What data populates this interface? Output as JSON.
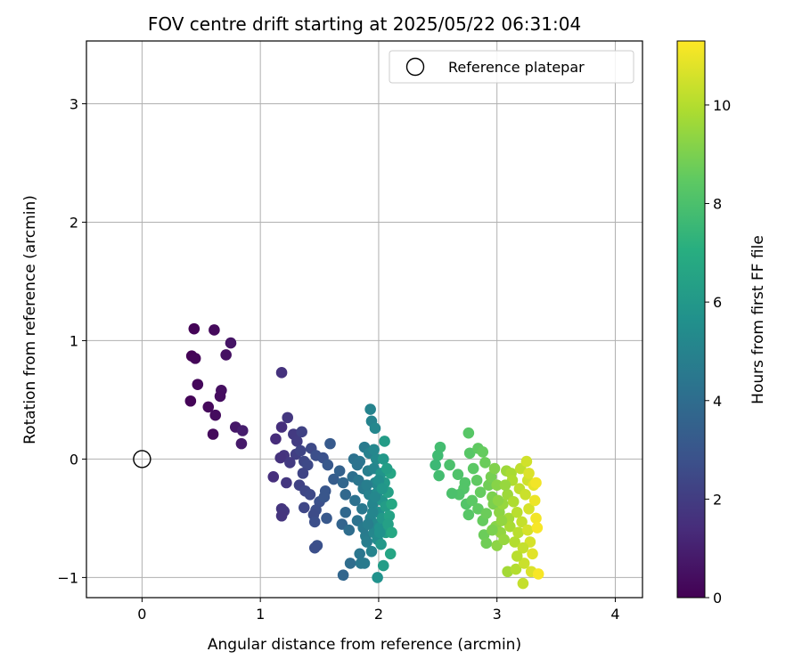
{
  "chart_data": {
    "type": "scatter",
    "title": "FOV centre drift starting at 2025/05/22 06:31:04",
    "xlabel": "Angular distance from reference (arcmin)",
    "ylabel": "Rotation from reference (arcmin)",
    "xlim": [
      -0.47,
      4.23
    ],
    "ylim": [
      -1.17,
      3.53
    ],
    "xticks": [
      0,
      1,
      2,
      3,
      4
    ],
    "yticks": [
      -1,
      0,
      1,
      2,
      3
    ],
    "grid": true,
    "legend": {
      "position": "top-right",
      "label": "Reference platepar"
    },
    "reference": {
      "x": 0,
      "y": 0
    },
    "colorbar": {
      "label": "Hours from first FF file",
      "range": [
        0,
        11.3
      ],
      "ticks": [
        0,
        2,
        4,
        6,
        8,
        10
      ],
      "colormap": "viridis"
    },
    "points": [
      [
        0.44,
        1.1,
        0.1
      ],
      [
        0.61,
        1.09,
        0.3
      ],
      [
        0.75,
        0.98,
        0.6
      ],
      [
        0.42,
        0.87,
        0.05
      ],
      [
        0.45,
        0.85,
        0.15
      ],
      [
        0.71,
        0.88,
        0.5
      ],
      [
        0.47,
        0.63,
        0.2
      ],
      [
        0.67,
        0.58,
        0.45
      ],
      [
        0.66,
        0.53,
        0.4
      ],
      [
        0.41,
        0.49,
        0.1
      ],
      [
        0.56,
        0.44,
        0.25
      ],
      [
        0.62,
        0.37,
        0.35
      ],
      [
        0.6,
        0.21,
        0.3
      ],
      [
        0.79,
        0.27,
        0.7
      ],
      [
        0.85,
        0.24,
        0.9
      ],
      [
        0.84,
        0.13,
        0.8
      ],
      [
        1.18,
        0.73,
        1.6
      ],
      [
        1.23,
        0.35,
        1.8
      ],
      [
        1.18,
        0.27,
        1.5
      ],
      [
        1.13,
        0.17,
        1.4
      ],
      [
        1.28,
        0.21,
        1.9
      ],
      [
        1.31,
        0.15,
        2.0
      ],
      [
        1.35,
        0.23,
        2.2
      ],
      [
        1.2,
        0.03,
        1.7
      ],
      [
        1.17,
        0.01,
        1.6
      ],
      [
        1.3,
        0.04,
        2.1
      ],
      [
        1.34,
        0.07,
        2.3
      ],
      [
        1.43,
        0.09,
        2.5
      ],
      [
        1.25,
        -0.03,
        1.9
      ],
      [
        1.37,
        -0.02,
        2.4
      ],
      [
        1.4,
        -0.05,
        2.5
      ],
      [
        1.47,
        0.03,
        2.7
      ],
      [
        1.53,
        0.01,
        2.8
      ],
      [
        1.36,
        -0.12,
        2.3
      ],
      [
        1.11,
        -0.15,
        1.5
      ],
      [
        1.22,
        -0.2,
        1.8
      ],
      [
        1.33,
        -0.22,
        2.2
      ],
      [
        1.38,
        -0.27,
        2.4
      ],
      [
        1.42,
        -0.3,
        2.5
      ],
      [
        1.18,
        -0.42,
        1.7
      ],
      [
        1.2,
        -0.44,
        1.8
      ],
      [
        1.18,
        -0.48,
        1.7
      ],
      [
        1.37,
        -0.41,
        2.4
      ],
      [
        1.5,
        -0.36,
        2.8
      ],
      [
        1.47,
        -0.43,
        2.7
      ],
      [
        1.45,
        -0.47,
        2.6
      ],
      [
        1.46,
        -0.53,
        2.7
      ],
      [
        1.55,
        -0.27,
        3.0
      ],
      [
        1.54,
        -0.32,
        3.0
      ],
      [
        1.59,
        0.13,
        3.2
      ],
      [
        1.57,
        -0.05,
        3.1
      ],
      [
        1.62,
        -0.17,
        3.3
      ],
      [
        1.48,
        -0.73,
        2.8
      ],
      [
        1.46,
        -0.75,
        2.7
      ],
      [
        1.56,
        -0.5,
        3.1
      ],
      [
        1.67,
        -0.1,
        3.5
      ],
      [
        1.7,
        -0.2,
        3.7
      ],
      [
        1.72,
        -0.3,
        3.8
      ],
      [
        1.69,
        -0.55,
        3.6
      ],
      [
        1.72,
        -0.45,
        3.8
      ],
      [
        1.75,
        -0.6,
        4.0
      ],
      [
        1.7,
        -0.98,
        3.7
      ],
      [
        1.76,
        -0.88,
        4.0
      ],
      [
        1.78,
        -0.15,
        4.1
      ],
      [
        1.79,
        0.0,
        4.2
      ],
      [
        1.8,
        -0.35,
        4.2
      ],
      [
        1.82,
        -0.52,
        4.3
      ],
      [
        1.84,
        -0.8,
        4.4
      ],
      [
        1.85,
        -0.88,
        4.5
      ],
      [
        1.87,
        -0.25,
        4.6
      ],
      [
        1.88,
        0.1,
        4.6
      ],
      [
        1.84,
        -0.02,
        4.4
      ],
      [
        1.86,
        -0.42,
        4.5
      ],
      [
        1.89,
        -0.65,
        4.7
      ],
      [
        1.88,
        -0.88,
        4.6
      ],
      [
        1.91,
        -0.1,
        4.8
      ],
      [
        1.92,
        -0.3,
        4.9
      ],
      [
        1.93,
        -0.5,
        5.0
      ],
      [
        1.9,
        -0.7,
        4.8
      ],
      [
        1.94,
        -0.78,
        5.0
      ],
      [
        1.94,
        0.32,
        5.0
      ],
      [
        1.97,
        0.26,
        5.2
      ],
      [
        1.93,
        0.42,
        5.0
      ],
      [
        1.92,
        0.05,
        4.9
      ],
      [
        1.96,
        -0.08,
        5.1
      ],
      [
        1.97,
        -0.2,
        5.2
      ],
      [
        1.95,
        -0.38,
        5.1
      ],
      [
        1.98,
        -0.55,
        5.3
      ],
      [
        1.96,
        -0.62,
        5.2
      ],
      [
        1.99,
        -0.68,
        5.4
      ],
      [
        1.98,
        0.0,
        5.3
      ],
      [
        1.99,
        -0.28,
        5.4
      ],
      [
        2.0,
        -0.45,
        5.6
      ],
      [
        2.02,
        -0.12,
        5.8
      ],
      [
        2.03,
        -0.35,
        5.9
      ],
      [
        2.01,
        -0.58,
        5.7
      ],
      [
        2.04,
        0.0,
        6.0
      ],
      [
        2.05,
        -0.2,
        6.1
      ],
      [
        2.06,
        -0.4,
        6.2
      ],
      [
        2.03,
        -0.5,
        6.0
      ],
      [
        1.99,
        -1.0,
        5.7
      ],
      [
        2.05,
        0.15,
        6.2
      ],
      [
        2.02,
        -0.72,
        6.0
      ],
      [
        2.04,
        -0.9,
        6.2
      ],
      [
        2.06,
        -0.62,
        6.3
      ],
      [
        2.08,
        -0.28,
        6.4
      ],
      [
        2.09,
        -0.48,
        6.5
      ],
      [
        2.1,
        -0.12,
        6.6
      ],
      [
        2.1,
        -0.8,
        6.6
      ],
      [
        1.82,
        -0.05,
        4.3
      ],
      [
        1.83,
        -0.18,
        4.4
      ],
      [
        1.87,
        -0.58,
        4.6
      ],
      [
        1.95,
        -0.45,
        5.1
      ],
      [
        1.97,
        -0.32,
        5.2
      ],
      [
        2.0,
        -0.18,
        5.5
      ],
      [
        2.01,
        -0.62,
        5.7
      ],
      [
        2.07,
        -0.08,
        6.3
      ],
      [
        2.08,
        -0.55,
        6.4
      ],
      [
        2.11,
        -0.38,
        6.7
      ],
      [
        2.11,
        -0.62,
        6.7
      ],
      [
        2.03,
        -0.25,
        5.9
      ],
      [
        1.96,
        0.08,
        5.2
      ],
      [
        1.9,
        -0.22,
        4.8
      ],
      [
        1.91,
        -0.55,
        4.8
      ],
      [
        2.52,
        0.1,
        7.8
      ],
      [
        2.5,
        0.03,
        7.7
      ],
      [
        2.48,
        -0.05,
        7.6
      ],
      [
        2.51,
        -0.14,
        7.8
      ],
      [
        2.6,
        -0.05,
        8.0
      ],
      [
        2.67,
        -0.13,
        8.1
      ],
      [
        2.73,
        -0.2,
        8.2
      ],
      [
        2.76,
        0.22,
        8.3
      ],
      [
        2.77,
        0.05,
        8.3
      ],
      [
        2.8,
        -0.08,
        8.4
      ],
      [
        2.84,
        0.09,
        8.5
      ],
      [
        2.88,
        0.06,
        8.6
      ],
      [
        2.9,
        -0.03,
        8.7
      ],
      [
        2.83,
        -0.18,
        8.5
      ],
      [
        2.86,
        -0.28,
        8.6
      ],
      [
        2.72,
        -0.25,
        8.2
      ],
      [
        2.68,
        -0.3,
        8.1
      ],
      [
        2.62,
        -0.29,
        8.0
      ],
      [
        2.74,
        -0.38,
        8.2
      ],
      [
        2.79,
        -0.35,
        8.4
      ],
      [
        2.76,
        -0.47,
        8.3
      ],
      [
        2.84,
        -0.42,
        8.5
      ],
      [
        2.88,
        -0.52,
        8.6
      ],
      [
        2.91,
        -0.46,
        8.7
      ],
      [
        2.89,
        -0.64,
        8.7
      ],
      [
        2.91,
        -0.71,
        8.8
      ],
      [
        2.93,
        -0.22,
        8.8
      ],
      [
        2.95,
        -0.15,
        8.9
      ],
      [
        2.96,
        -0.32,
        9.0
      ],
      [
        2.97,
        -0.38,
        9.0
      ],
      [
        2.98,
        -0.08,
        9.1
      ],
      [
        3.0,
        -0.22,
        9.2
      ],
      [
        3.02,
        -0.45,
        9.3
      ],
      [
        2.99,
        -0.57,
        9.2
      ],
      [
        3.03,
        -0.62,
        9.4
      ],
      [
        3.0,
        -0.73,
        9.3
      ],
      [
        3.06,
        -0.68,
        9.5
      ],
      [
        3.08,
        -0.1,
        9.6
      ],
      [
        3.09,
        -0.3,
        9.6
      ],
      [
        3.1,
        -0.5,
        9.7
      ],
      [
        3.05,
        -0.38,
        9.5
      ],
      [
        3.11,
        -0.57,
        9.8
      ],
      [
        3.12,
        -0.12,
        9.8
      ],
      [
        3.13,
        -0.18,
        9.9
      ],
      [
        3.14,
        -0.36,
        9.9
      ],
      [
        3.15,
        -0.7,
        10.0
      ],
      [
        3.17,
        -0.45,
        10.1
      ],
      [
        3.18,
        -0.62,
        10.1
      ],
      [
        3.09,
        -0.95,
        9.7
      ],
      [
        3.16,
        -0.93,
        10.0
      ],
      [
        3.19,
        -0.25,
        10.2
      ],
      [
        3.2,
        -0.08,
        10.2
      ],
      [
        3.21,
        -0.53,
        10.3
      ],
      [
        3.22,
        -1.05,
        10.3
      ],
      [
        3.23,
        -0.88,
        10.4
      ],
      [
        3.24,
        -0.3,
        10.4
      ],
      [
        3.25,
        -0.02,
        10.5
      ],
      [
        3.26,
        -0.18,
        10.5
      ],
      [
        3.27,
        -0.42,
        10.6
      ],
      [
        3.28,
        -0.7,
        10.6
      ],
      [
        3.26,
        -0.6,
        10.6
      ],
      [
        3.29,
        -0.95,
        10.7
      ],
      [
        3.3,
        -0.8,
        10.8
      ],
      [
        3.31,
        -0.22,
        10.9
      ],
      [
        3.32,
        -0.35,
        11.0
      ],
      [
        3.33,
        -0.5,
        11.1
      ],
      [
        3.34,
        -0.58,
        11.2
      ],
      [
        3.35,
        -0.97,
        11.2
      ],
      [
        3.33,
        -0.2,
        11.1
      ],
      [
        3.27,
        -0.12,
        10.7
      ],
      [
        3.22,
        -0.75,
        10.3
      ],
      [
        3.17,
        -0.82,
        10.1
      ],
      [
        3.04,
        -0.52,
        9.4
      ],
      [
        2.96,
        -0.6,
        9.0
      ],
      [
        3.01,
        -0.35,
        9.3
      ],
      [
        3.07,
        -0.22,
        9.5
      ]
    ]
  }
}
